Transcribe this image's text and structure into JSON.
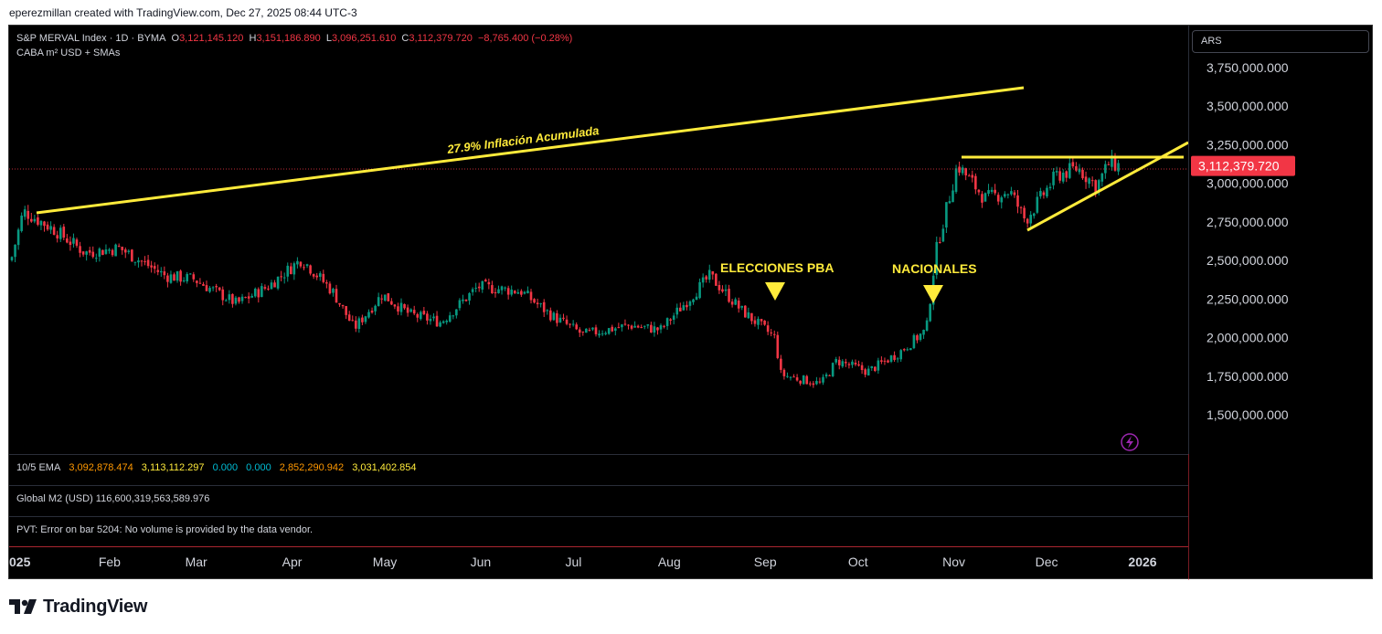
{
  "header": {
    "text": "eperezmillan created with TradingView.com, Dec 27, 2025 08:44 UTC-3"
  },
  "legend": {
    "symbol": "S&P MERVAL Index · 1D · BYMA",
    "o_label": "O",
    "o_value": "3,121,145.120",
    "h_label": "H",
    "h_value": "3,151,186.890",
    "l_label": "L",
    "l_value": "3,096,251.610",
    "c_label": "C",
    "c_value": "3,112,379.720",
    "change": "−8,765.400 (−0.28%)",
    "indicator": "CABA m² USD + SMAs"
  },
  "currency_button": "ARS",
  "price_axis": {
    "labels": [
      "3,750,000.000",
      "3,500,000.000",
      "3,250,000.000",
      "3,000,000.000",
      "2,750,000.000",
      "2,500,000.000",
      "2,250,000.000",
      "2,000,000.000",
      "1,750,000.000",
      "1,500,000.000"
    ],
    "last_price": "3,112,379.720"
  },
  "panes": {
    "ema": {
      "name": "10/5 EMA",
      "v1": "3,092,878.474",
      "v2": "3,113,112.297",
      "v3": "0.000",
      "v4": "0.000",
      "v5": "2,852,290.942",
      "v6": "3,031,402.854"
    },
    "m2": {
      "text": "Global M2 (USD)  116,600,319,563,589.976"
    },
    "pvt": {
      "text": "PVT: Error on bar 5204: No volume is provided by the data vendor."
    }
  },
  "time_axis": [
    "025",
    "Feb",
    "Mar",
    "Apr",
    "May",
    "Jun",
    "Jul",
    "Aug",
    "Sep",
    "Oct",
    "Nov",
    "Dec",
    "2026"
  ],
  "annotations": {
    "inflation": "27.9% Inflación Acumulada",
    "elecciones": "ELECCIONES PBA",
    "nacionales": "NACIONALES"
  },
  "footer": {
    "brand": "TradingView"
  },
  "colors": {
    "up": "#089981",
    "down": "#f23645",
    "annotation": "#ffeb3b",
    "ema_orange": "#ff9800",
    "ema_yellow": "#ffeb3b",
    "ema_cyan": "#00bcd4"
  },
  "chart_data": {
    "type": "candlestick",
    "y_axis_unit": "ARS",
    "ylim": [
      1300000,
      3850000
    ],
    "x_range": [
      "2025-01",
      "2026-01"
    ],
    "series": [
      {
        "name": "S&P MERVAL Index",
        "close_path": [
          [
            "2025-01-01",
            2500000
          ],
          [
            "2025-01-05",
            2820000
          ],
          [
            "2025-01-15",
            2700000
          ],
          [
            "2025-01-25",
            2550000
          ],
          [
            "2025-02-05",
            2580000
          ],
          [
            "2025-02-20",
            2400000
          ],
          [
            "2025-03-01",
            2380000
          ],
          [
            "2025-03-15",
            2220000
          ],
          [
            "2025-03-25",
            2330000
          ],
          [
            "2025-04-05",
            2510000
          ],
          [
            "2025-04-15",
            2300000
          ],
          [
            "2025-04-22",
            2060000
          ],
          [
            "2025-05-01",
            2280000
          ],
          [
            "2025-05-10",
            2150000
          ],
          [
            "2025-05-20",
            2100000
          ],
          [
            "2025-06-01",
            2330000
          ],
          [
            "2025-06-15",
            2300000
          ],
          [
            "2025-06-25",
            2140000
          ],
          [
            "2025-07-05",
            2020000
          ],
          [
            "2025-07-20",
            2080000
          ],
          [
            "2025-07-30",
            2050000
          ],
          [
            "2025-08-10",
            2290000
          ],
          [
            "2025-08-15",
            2400000
          ],
          [
            "2025-08-25",
            2180000
          ],
          [
            "2025-09-05",
            2000000
          ],
          [
            "2025-09-07",
            1760000
          ],
          [
            "2025-09-20",
            1700000
          ],
          [
            "2025-09-25",
            1850000
          ],
          [
            "2025-10-05",
            1780000
          ],
          [
            "2025-10-15",
            1900000
          ],
          [
            "2025-10-24",
            2050000
          ],
          [
            "2025-10-27",
            2550000
          ],
          [
            "2025-11-03",
            3120000
          ],
          [
            "2025-11-12",
            2900000
          ],
          [
            "2025-11-20",
            2950000
          ],
          [
            "2025-11-25",
            2760000
          ],
          [
            "2025-12-05",
            3050000
          ],
          [
            "2025-12-12",
            3100000
          ],
          [
            "2025-12-18",
            2980000
          ],
          [
            "2025-12-22",
            3130000
          ],
          [
            "2025-12-26",
            3112380
          ]
        ]
      }
    ]
  }
}
